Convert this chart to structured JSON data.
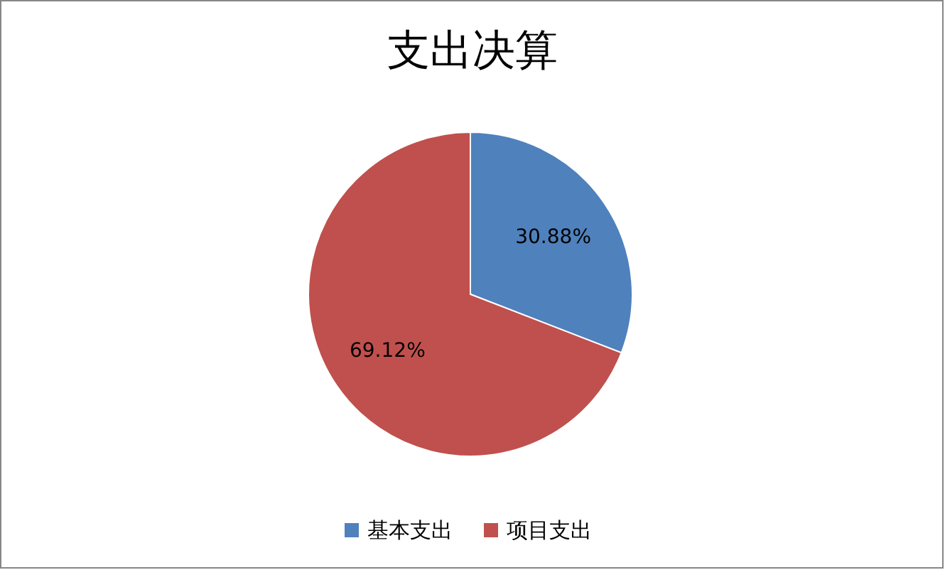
{
  "chart_data": {
    "type": "pie",
    "title": "支出决算",
    "categories": [
      "基本支出",
      "项目支出"
    ],
    "values": [
      30.88,
      69.12
    ],
    "colors": [
      "#4f81bd",
      "#c0504d"
    ],
    "value_labels": [
      "30.88%",
      "69.12%"
    ],
    "legend": "bottom"
  }
}
